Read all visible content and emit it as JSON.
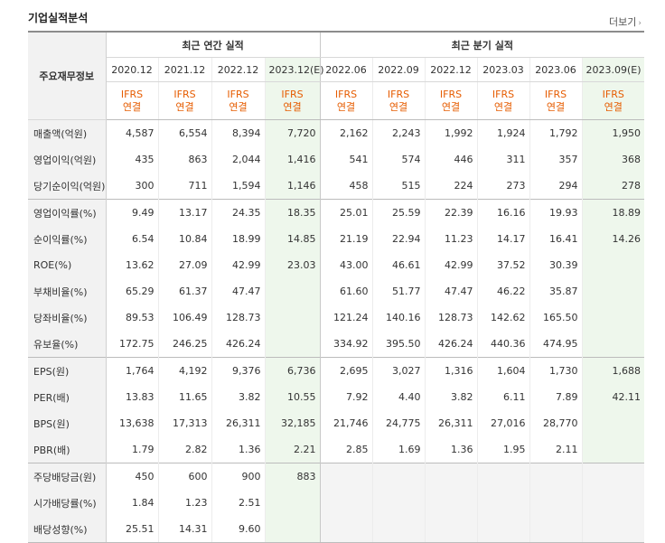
{
  "section_title": "기업실적분석",
  "more_link": "더보기",
  "table": {
    "row_header_label": "주요재무정보",
    "groups": [
      {
        "label": "최근 연간 실적",
        "span": 4
      },
      {
        "label": "최근 분기 실적",
        "span": 6
      }
    ],
    "periods": [
      "2020.12",
      "2021.12",
      "2022.12",
      "2023.12(E)",
      "2022.06",
      "2022.09",
      "2022.12",
      "2023.03",
      "2023.06",
      "2023.09(E)"
    ],
    "estimate_columns": [
      3,
      9
    ],
    "standard_line1": "IFRS",
    "standard_line2": "연결",
    "rows": [
      {
        "label": "매출액(억원)",
        "values": [
          "4,587",
          "6,554",
          "8,394",
          "7,720",
          "2,162",
          "2,243",
          "1,992",
          "1,924",
          "1,792",
          "1,950"
        ]
      },
      {
        "label": "영업이익(억원)",
        "values": [
          "435",
          "863",
          "2,044",
          "1,416",
          "541",
          "574",
          "446",
          "311",
          "357",
          "368"
        ]
      },
      {
        "label": "당기순이익(억원)",
        "values": [
          "300",
          "711",
          "1,594",
          "1,146",
          "458",
          "515",
          "224",
          "273",
          "294",
          "278"
        ]
      },
      {
        "label": "영업이익률(%)",
        "values": [
          "9.49",
          "13.17",
          "24.35",
          "18.35",
          "25.01",
          "25.59",
          "22.39",
          "16.16",
          "19.93",
          "18.89"
        ]
      },
      {
        "label": "순이익률(%)",
        "values": [
          "6.54",
          "10.84",
          "18.99",
          "14.85",
          "21.19",
          "22.94",
          "11.23",
          "14.17",
          "16.41",
          "14.26"
        ]
      },
      {
        "label": "ROE(%)",
        "values": [
          "13.62",
          "27.09",
          "42.99",
          "23.03",
          "43.00",
          "46.61",
          "42.99",
          "37.52",
          "30.39",
          ""
        ]
      },
      {
        "label": "부채비율(%)",
        "values": [
          "65.29",
          "61.37",
          "47.47",
          "",
          "61.60",
          "51.77",
          "47.47",
          "46.22",
          "35.87",
          ""
        ]
      },
      {
        "label": "당좌비율(%)",
        "values": [
          "89.53",
          "106.49",
          "128.73",
          "",
          "121.24",
          "140.16",
          "128.73",
          "142.62",
          "165.50",
          ""
        ]
      },
      {
        "label": "유보율(%)",
        "values": [
          "172.75",
          "246.25",
          "426.24",
          "",
          "334.92",
          "395.50",
          "426.24",
          "440.36",
          "474.95",
          ""
        ]
      },
      {
        "label": "EPS(원)",
        "values": [
          "1,764",
          "4,192",
          "9,376",
          "6,736",
          "2,695",
          "3,027",
          "1,316",
          "1,604",
          "1,730",
          "1,688"
        ]
      },
      {
        "label": "PER(배)",
        "values": [
          "13.83",
          "11.65",
          "3.82",
          "10.55",
          "7.92",
          "4.40",
          "3.82",
          "6.11",
          "7.89",
          "42.11"
        ]
      },
      {
        "label": "BPS(원)",
        "values": [
          "13,638",
          "17,313",
          "26,311",
          "32,185",
          "21,746",
          "24,775",
          "26,311",
          "27,016",
          "28,770",
          ""
        ]
      },
      {
        "label": "PBR(배)",
        "values": [
          "1.79",
          "2.82",
          "1.36",
          "2.21",
          "2.85",
          "1.69",
          "1.36",
          "1.95",
          "2.11",
          ""
        ]
      },
      {
        "label": "주당배당금(원)",
        "values": [
          "450",
          "600",
          "900",
          "883",
          "",
          "",
          "",
          "",
          "",
          ""
        ]
      },
      {
        "label": "시가배당률(%)",
        "values": [
          "1.84",
          "1.23",
          "2.51",
          "",
          "",
          "",
          "",
          "",
          "",
          ""
        ]
      },
      {
        "label": "배당성향(%)",
        "values": [
          "25.51",
          "14.31",
          "9.60",
          "",
          "",
          "",
          "",
          "",
          "",
          ""
        ]
      }
    ],
    "section_break_before_rows": [
      3,
      9,
      13
    ]
  }
}
